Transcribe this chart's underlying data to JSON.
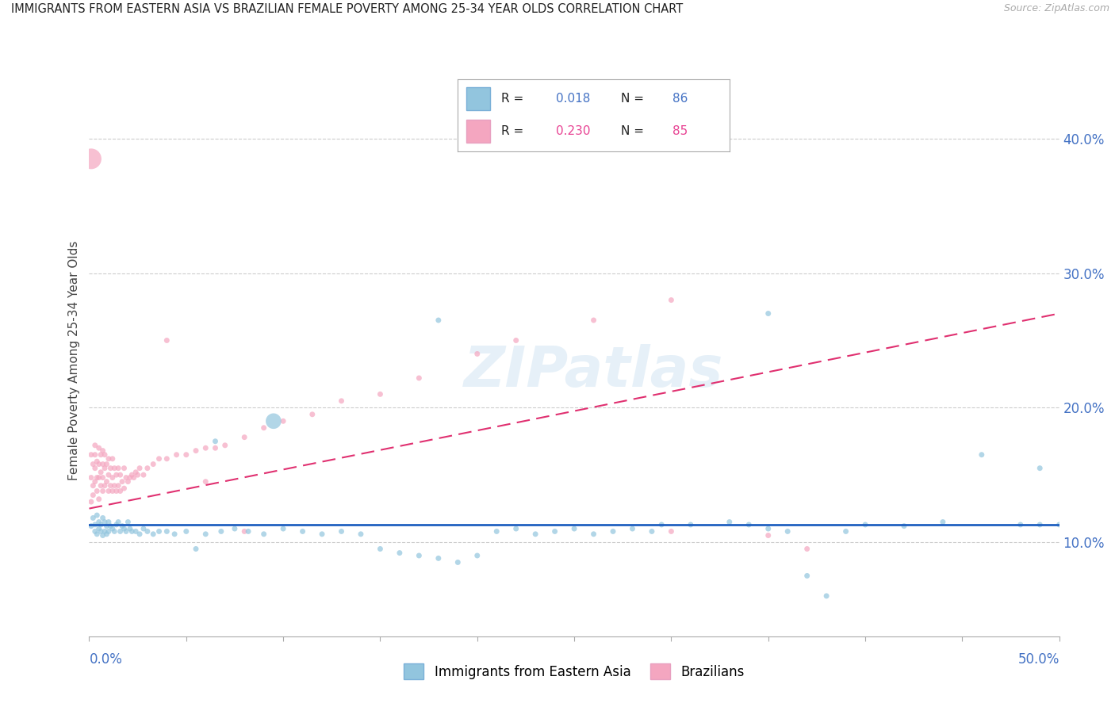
{
  "title": "IMMIGRANTS FROM EASTERN ASIA VS BRAZILIAN FEMALE POVERTY AMONG 25-34 YEAR OLDS CORRELATION CHART",
  "source": "Source: ZipAtlas.com",
  "ylabel": "Female Poverty Among 25-34 Year Olds",
  "ytick_labels": [
    "10.0%",
    "20.0%",
    "30.0%",
    "40.0%"
  ],
  "ytick_values": [
    0.1,
    0.2,
    0.3,
    0.4
  ],
  "xlim": [
    0.0,
    0.5
  ],
  "ylim": [
    0.03,
    0.44
  ],
  "legend1_r": "0.018",
  "legend1_n": "86",
  "legend2_r": "0.230",
  "legend2_n": "85",
  "color_blue": "#92c5de",
  "color_pink": "#f4a6c0",
  "trendline_blue": "#2060c0",
  "trendline_pink": "#e03070",
  "watermark_text": "ZIPatlas",
  "blue_trendline_y0": 0.113,
  "blue_trendline_y1": 0.113,
  "pink_trendline_y0": 0.125,
  "pink_trendline_y1": 0.27,
  "blue_scatter_x": [
    0.001,
    0.002,
    0.003,
    0.003,
    0.004,
    0.004,
    0.005,
    0.005,
    0.006,
    0.006,
    0.007,
    0.007,
    0.008,
    0.008,
    0.009,
    0.009,
    0.01,
    0.01,
    0.011,
    0.012,
    0.013,
    0.014,
    0.015,
    0.016,
    0.017,
    0.018,
    0.019,
    0.02,
    0.021,
    0.022,
    0.024,
    0.026,
    0.028,
    0.03,
    0.033,
    0.036,
    0.04,
    0.044,
    0.05,
    0.055,
    0.06,
    0.068,
    0.075,
    0.082,
    0.09,
    0.1,
    0.11,
    0.12,
    0.13,
    0.14,
    0.15,
    0.16,
    0.17,
    0.18,
    0.19,
    0.2,
    0.21,
    0.22,
    0.23,
    0.24,
    0.25,
    0.26,
    0.27,
    0.28,
    0.29,
    0.295,
    0.31,
    0.33,
    0.34,
    0.35,
    0.36,
    0.37,
    0.38,
    0.39,
    0.4,
    0.42,
    0.44,
    0.46,
    0.48,
    0.49,
    0.49,
    0.5,
    0.18,
    0.35,
    0.095,
    0.065
  ],
  "blue_scatter_y": [
    0.112,
    0.118,
    0.113,
    0.108,
    0.12,
    0.106,
    0.115,
    0.11,
    0.113,
    0.108,
    0.118,
    0.105,
    0.115,
    0.108,
    0.112,
    0.106,
    0.115,
    0.108,
    0.112,
    0.11,
    0.108,
    0.113,
    0.115,
    0.108,
    0.112,
    0.11,
    0.108,
    0.115,
    0.11,
    0.108,
    0.108,
    0.106,
    0.11,
    0.108,
    0.106,
    0.108,
    0.108,
    0.106,
    0.108,
    0.095,
    0.106,
    0.108,
    0.11,
    0.108,
    0.106,
    0.11,
    0.108,
    0.106,
    0.108,
    0.106,
    0.095,
    0.092,
    0.09,
    0.088,
    0.085,
    0.09,
    0.108,
    0.11,
    0.106,
    0.108,
    0.11,
    0.106,
    0.108,
    0.11,
    0.108,
    0.113,
    0.113,
    0.115,
    0.113,
    0.11,
    0.108,
    0.075,
    0.06,
    0.108,
    0.113,
    0.112,
    0.115,
    0.165,
    0.113,
    0.155,
    0.113,
    0.113,
    0.265,
    0.27,
    0.19,
    0.175
  ],
  "blue_scatter_s": [
    25,
    25,
    25,
    25,
    25,
    25,
    25,
    25,
    25,
    25,
    25,
    25,
    25,
    25,
    25,
    25,
    25,
    25,
    25,
    25,
    25,
    25,
    25,
    25,
    25,
    25,
    25,
    25,
    25,
    25,
    25,
    25,
    25,
    25,
    25,
    25,
    25,
    25,
    25,
    25,
    25,
    25,
    25,
    25,
    25,
    25,
    25,
    25,
    25,
    25,
    25,
    25,
    25,
    25,
    25,
    25,
    25,
    25,
    25,
    25,
    25,
    25,
    25,
    25,
    25,
    25,
    25,
    25,
    25,
    25,
    25,
    25,
    25,
    25,
    25,
    25,
    25,
    25,
    25,
    25,
    25,
    25,
    25,
    25,
    200,
    25
  ],
  "pink_scatter_x": [
    0.001,
    0.001,
    0.001,
    0.002,
    0.002,
    0.002,
    0.003,
    0.003,
    0.003,
    0.003,
    0.004,
    0.004,
    0.004,
    0.005,
    0.005,
    0.005,
    0.005,
    0.006,
    0.006,
    0.006,
    0.007,
    0.007,
    0.007,
    0.007,
    0.008,
    0.008,
    0.008,
    0.009,
    0.009,
    0.01,
    0.01,
    0.01,
    0.011,
    0.011,
    0.012,
    0.012,
    0.012,
    0.013,
    0.013,
    0.014,
    0.014,
    0.015,
    0.015,
    0.016,
    0.016,
    0.017,
    0.018,
    0.018,
    0.019,
    0.02,
    0.021,
    0.022,
    0.023,
    0.024,
    0.025,
    0.026,
    0.028,
    0.03,
    0.033,
    0.036,
    0.04,
    0.045,
    0.05,
    0.055,
    0.06,
    0.065,
    0.07,
    0.08,
    0.09,
    0.1,
    0.115,
    0.13,
    0.15,
    0.17,
    0.2,
    0.22,
    0.26,
    0.3,
    0.35,
    0.3,
    0.37,
    0.04,
    0.06,
    0.08,
    0.001
  ],
  "pink_scatter_y": [
    0.13,
    0.148,
    0.165,
    0.142,
    0.158,
    0.135,
    0.145,
    0.155,
    0.165,
    0.172,
    0.138,
    0.148,
    0.16,
    0.132,
    0.148,
    0.158,
    0.17,
    0.142,
    0.152,
    0.165,
    0.138,
    0.148,
    0.158,
    0.168,
    0.142,
    0.155,
    0.165,
    0.145,
    0.158,
    0.138,
    0.15,
    0.162,
    0.142,
    0.155,
    0.138,
    0.148,
    0.162,
    0.142,
    0.155,
    0.138,
    0.15,
    0.142,
    0.155,
    0.138,
    0.15,
    0.145,
    0.14,
    0.155,
    0.148,
    0.145,
    0.148,
    0.15,
    0.148,
    0.152,
    0.15,
    0.155,
    0.15,
    0.155,
    0.158,
    0.162,
    0.162,
    0.165,
    0.165,
    0.168,
    0.17,
    0.17,
    0.172,
    0.178,
    0.185,
    0.19,
    0.195,
    0.205,
    0.21,
    0.222,
    0.24,
    0.25,
    0.265,
    0.28,
    0.105,
    0.108,
    0.095,
    0.25,
    0.145,
    0.108,
    0.385
  ],
  "pink_scatter_s": [
    25,
    25,
    25,
    25,
    25,
    25,
    25,
    25,
    25,
    25,
    25,
    25,
    25,
    25,
    25,
    25,
    25,
    25,
    25,
    25,
    25,
    25,
    25,
    25,
    25,
    25,
    25,
    25,
    25,
    25,
    25,
    25,
    25,
    25,
    25,
    25,
    25,
    25,
    25,
    25,
    25,
    25,
    25,
    25,
    25,
    25,
    25,
    25,
    25,
    25,
    25,
    25,
    25,
    25,
    25,
    25,
    25,
    25,
    25,
    25,
    25,
    25,
    25,
    25,
    25,
    25,
    25,
    25,
    25,
    25,
    25,
    25,
    25,
    25,
    25,
    25,
    25,
    25,
    25,
    25,
    25,
    25,
    25,
    25,
    350
  ]
}
